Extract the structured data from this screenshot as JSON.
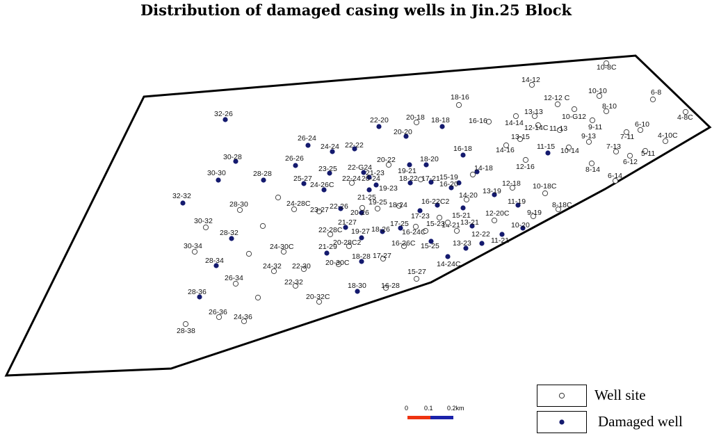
{
  "title": "Distribution of damaged casing wells in Jin.25 Block",
  "legend": {
    "well_site": "Well site",
    "damaged_well": "Damaged well"
  },
  "scale_bar": {
    "ticks": [
      "0",
      "0.1",
      "0.2km"
    ],
    "colors": [
      "#ee3311",
      "#1a22aa"
    ]
  },
  "colors": {
    "well_site_fill": "#ffffff",
    "damaged_fill": "#141a6e",
    "outline": "#000000"
  },
  "wells": [
    {
      "id": "10-8C",
      "type": "site"
    },
    {
      "id": "14-12",
      "type": "site"
    },
    {
      "id": "6-8",
      "type": "site"
    },
    {
      "id": "10-10",
      "type": "site"
    },
    {
      "id": "12-12 C",
      "type": "site"
    },
    {
      "id": "8-10",
      "type": "site"
    },
    {
      "id": "4-8C",
      "type": "site"
    },
    {
      "id": "13-13",
      "type": "site"
    },
    {
      "id": "10-G12",
      "type": "site"
    },
    {
      "id": "9-11",
      "type": "site"
    },
    {
      "id": "6-10",
      "type": "site"
    },
    {
      "id": "14-14",
      "type": "site"
    },
    {
      "id": "12-14C",
      "type": "site"
    },
    {
      "id": "11-13",
      "type": "site"
    },
    {
      "id": "7-11",
      "type": "site"
    },
    {
      "id": "4-10C",
      "type": "site"
    },
    {
      "id": "13-15",
      "type": "site"
    },
    {
      "id": "9-13",
      "type": "site"
    },
    {
      "id": "14-16",
      "type": "site"
    },
    {
      "id": "11-15",
      "type": "damaged"
    },
    {
      "id": "10-14",
      "type": "site"
    },
    {
      "id": "7-13",
      "type": "site"
    },
    {
      "id": "5-11",
      "type": "site"
    },
    {
      "id": "6-12",
      "type": "site"
    },
    {
      "id": "12-16",
      "type": "site"
    },
    {
      "id": "8-14",
      "type": "site"
    },
    {
      "id": "6-14",
      "type": "site"
    },
    {
      "id": "18-16",
      "type": "site"
    },
    {
      "id": "16-16",
      "type": "site"
    },
    {
      "id": "20-18",
      "type": "site"
    },
    {
      "id": "18-18",
      "type": "damaged"
    },
    {
      "id": "22-20",
      "type": "damaged"
    },
    {
      "id": "20-20",
      "type": "damaged"
    },
    {
      "id": "16-18",
      "type": "damaged"
    },
    {
      "id": "32-26",
      "type": "damaged"
    },
    {
      "id": "26-24",
      "type": "damaged"
    },
    {
      "id": "24-24",
      "type": "damaged"
    },
    {
      "id": "22-22",
      "type": "damaged"
    },
    {
      "id": "30-28",
      "type": "damaged"
    },
    {
      "id": "26-26",
      "type": "damaged"
    },
    {
      "id": "20-22",
      "type": "site"
    },
    {
      "id": "18-20",
      "type": "damaged"
    },
    {
      "id": "14-18",
      "type": "damaged"
    },
    {
      "id": "30-30",
      "type": "damaged"
    },
    {
      "id": "28-28",
      "type": "damaged"
    },
    {
      "id": "23-25",
      "type": "damaged"
    },
    {
      "id": "22-G24",
      "type": "damaged"
    },
    {
      "id": "21-23",
      "type": "damaged"
    },
    {
      "id": "19-21",
      "type": "damaged"
    },
    {
      "id": "15-19",
      "type": "damaged"
    },
    {
      "id": "22-24",
      "type": "site"
    },
    {
      "id": "20-24",
      "type": "damaged"
    },
    {
      "id": "18-22",
      "type": "damaged"
    },
    {
      "id": "17-21",
      "type": "damaged"
    },
    {
      "id": "25-27",
      "type": "damaged"
    },
    {
      "id": "24-26C",
      "type": "damaged"
    },
    {
      "id": "19-23",
      "type": "damaged"
    },
    {
      "id": "16-20",
      "type": "damaged"
    },
    {
      "id": "12-18",
      "type": "site"
    },
    {
      "id": "10-18C",
      "type": "site"
    },
    {
      "id": "13-19",
      "type": "damaged"
    },
    {
      "id": "14-20",
      "type": "site"
    },
    {
      "id": "32-32",
      "type": "damaged"
    },
    {
      "id": "28-30",
      "type": "site"
    },
    {
      "id": "24-28C",
      "type": "site"
    },
    {
      "id": "23-27",
      "type": "site"
    },
    {
      "id": "22-26",
      "type": "damaged"
    },
    {
      "id": "21-25",
      "type": "site"
    },
    {
      "id": "19-25",
      "type": "site"
    },
    {
      "id": "20-26",
      "type": "damaged"
    },
    {
      "id": "18-24",
      "type": "site"
    },
    {
      "id": "16-22C2",
      "type": "damaged"
    },
    {
      "id": "11-19",
      "type": "damaged"
    },
    {
      "id": "8-18C",
      "type": "site"
    },
    {
      "id": "9-19",
      "type": "site"
    },
    {
      "id": "17-23",
      "type": "damaged"
    },
    {
      "id": "15-21",
      "type": "damaged"
    },
    {
      "id": "12-20C",
      "type": "site"
    },
    {
      "id": "30-32",
      "type": "site"
    },
    {
      "id": "21-27",
      "type": "damaged"
    },
    {
      "id": "17-25",
      "type": "damaged"
    },
    {
      "id": "15-23",
      "type": "site"
    },
    {
      "id": "14-21",
      "type": "site"
    },
    {
      "id": "13-21",
      "type": "damaged"
    },
    {
      "id": "10-20",
      "type": "damaged"
    },
    {
      "id": "28-32",
      "type": "damaged"
    },
    {
      "id": "22-28C",
      "type": "site"
    },
    {
      "id": "19-27",
      "type": "damaged"
    },
    {
      "id": "18-26",
      "type": "damaged"
    },
    {
      "id": "16-24C",
      "type": "site"
    },
    {
      "id": "12-22",
      "type": "damaged"
    },
    {
      "id": "11-21",
      "type": "damaged"
    },
    {
      "id": "30-34",
      "type": "site"
    },
    {
      "id": "24-30C",
      "type": "site"
    },
    {
      "id": "20-28C2",
      "type": "site"
    },
    {
      "id": "16-26C",
      "type": "site"
    },
    {
      "id": "15-25",
      "type": "damaged"
    },
    {
      "id": "13-23",
      "type": "damaged"
    },
    {
      "id": "21-29",
      "type": "damaged"
    },
    {
      "id": "18-28",
      "type": "damaged"
    },
    {
      "id": "17-27",
      "type": "site"
    },
    {
      "id": "14-24C",
      "type": "damaged"
    },
    {
      "id": "28-34",
      "type": "damaged"
    },
    {
      "id": "24-32",
      "type": "site"
    },
    {
      "id": "22-30",
      "type": "site"
    },
    {
      "id": "20-30C",
      "type": "site"
    },
    {
      "id": "26-34",
      "type": "site"
    },
    {
      "id": "22-32",
      "type": "site"
    },
    {
      "id": "15-27",
      "type": "site"
    },
    {
      "id": "18-30",
      "type": "damaged"
    },
    {
      "id": "16-28",
      "type": "site"
    },
    {
      "id": "28-36",
      "type": "damaged"
    },
    {
      "id": "20-32C",
      "type": "site"
    },
    {
      "id": "26-36",
      "type": "site"
    },
    {
      "id": "24-36",
      "type": "site"
    },
    {
      "id": "28-38",
      "type": "site"
    },
    {
      "id": "",
      "type": "site"
    },
    {
      "id": "",
      "type": "site"
    },
    {
      "id": "",
      "type": "site"
    },
    {
      "id": "",
      "type": "site"
    },
    {
      "id": "",
      "type": "site"
    },
    {
      "id": "",
      "type": "site"
    },
    {
      "id": "",
      "type": "site"
    },
    {
      "id": "",
      "type": "site"
    }
  ]
}
